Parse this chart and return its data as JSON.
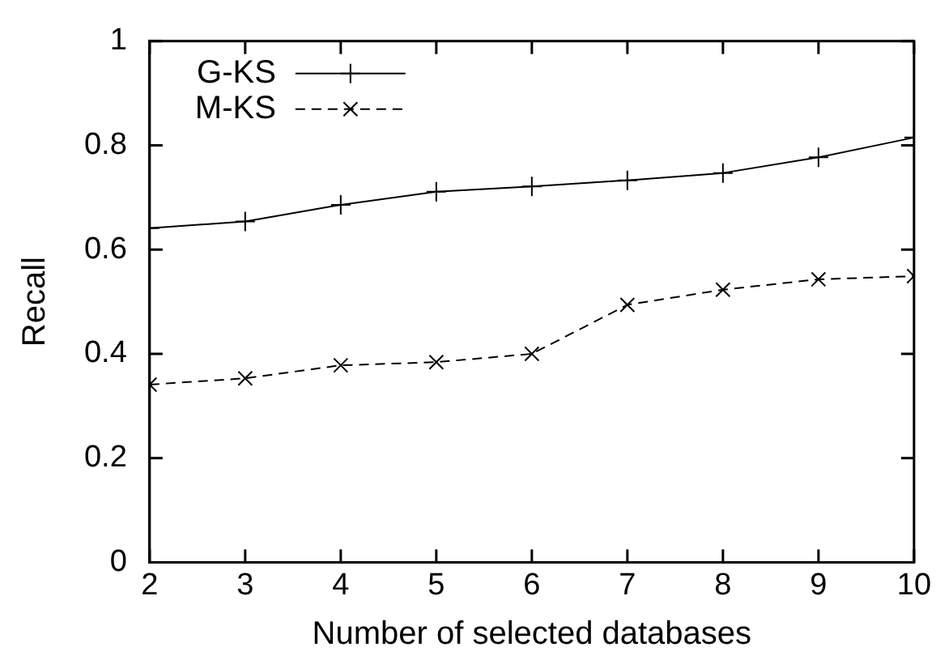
{
  "chart_data": {
    "type": "line",
    "xlabel": "Number of selected databases",
    "ylabel": "Recall",
    "x": [
      2,
      3,
      4,
      5,
      6,
      7,
      8,
      9,
      10
    ],
    "xlim": [
      2,
      10
    ],
    "xticks": [
      2,
      3,
      4,
      5,
      6,
      7,
      8,
      9,
      10
    ],
    "ylim": [
      0,
      1
    ],
    "yticks": [
      0,
      {
        "value": 0.2,
        "label": "0.2"
      },
      {
        "value": 0.4,
        "label": "0.4"
      },
      {
        "value": 0.6,
        "label": "0.6"
      },
      {
        "value": 0.8,
        "label": "0.8"
      },
      1
    ],
    "grid": false,
    "legend": "top left",
    "series": [
      {
        "name": "G-KS",
        "color": "#000000",
        "marker": "plus",
        "line_style": "solid",
        "values": [
          0.641,
          0.654,
          0.686,
          0.711,
          0.721,
          0.733,
          0.747,
          0.777,
          0.815
        ]
      },
      {
        "name": "M-KS",
        "color": "#000000",
        "marker": "cross",
        "line_style": "dashed",
        "values": [
          0.341,
          0.353,
          0.378,
          0.384,
          0.4,
          0.494,
          0.523,
          0.543,
          0.549
        ]
      }
    ]
  }
}
